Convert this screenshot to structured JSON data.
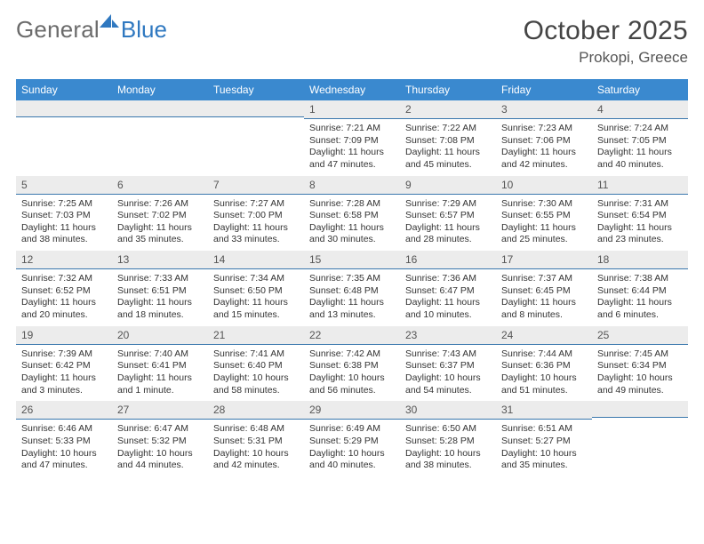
{
  "logo": {
    "text1": "General",
    "text2": "Blue"
  },
  "title": "October 2025",
  "location": "Prokopi, Greece",
  "colors": {
    "header_bg": "#3a89cf",
    "header_text": "#ffffff",
    "daynum_bg": "#ececec",
    "daynum_border": "#3a77ad",
    "logo_gray": "#6b6b6b",
    "logo_blue": "#2f78c0"
  },
  "dayNames": [
    "Sunday",
    "Monday",
    "Tuesday",
    "Wednesday",
    "Thursday",
    "Friday",
    "Saturday"
  ],
  "weeks": [
    [
      {
        "n": "",
        "sr": "",
        "ss": "",
        "dl": ""
      },
      {
        "n": "",
        "sr": "",
        "ss": "",
        "dl": ""
      },
      {
        "n": "",
        "sr": "",
        "ss": "",
        "dl": ""
      },
      {
        "n": "1",
        "sr": "Sunrise: 7:21 AM",
        "ss": "Sunset: 7:09 PM",
        "dl": "Daylight: 11 hours and 47 minutes."
      },
      {
        "n": "2",
        "sr": "Sunrise: 7:22 AM",
        "ss": "Sunset: 7:08 PM",
        "dl": "Daylight: 11 hours and 45 minutes."
      },
      {
        "n": "3",
        "sr": "Sunrise: 7:23 AM",
        "ss": "Sunset: 7:06 PM",
        "dl": "Daylight: 11 hours and 42 minutes."
      },
      {
        "n": "4",
        "sr": "Sunrise: 7:24 AM",
        "ss": "Sunset: 7:05 PM",
        "dl": "Daylight: 11 hours and 40 minutes."
      }
    ],
    [
      {
        "n": "5",
        "sr": "Sunrise: 7:25 AM",
        "ss": "Sunset: 7:03 PM",
        "dl": "Daylight: 11 hours and 38 minutes."
      },
      {
        "n": "6",
        "sr": "Sunrise: 7:26 AM",
        "ss": "Sunset: 7:02 PM",
        "dl": "Daylight: 11 hours and 35 minutes."
      },
      {
        "n": "7",
        "sr": "Sunrise: 7:27 AM",
        "ss": "Sunset: 7:00 PM",
        "dl": "Daylight: 11 hours and 33 minutes."
      },
      {
        "n": "8",
        "sr": "Sunrise: 7:28 AM",
        "ss": "Sunset: 6:58 PM",
        "dl": "Daylight: 11 hours and 30 minutes."
      },
      {
        "n": "9",
        "sr": "Sunrise: 7:29 AM",
        "ss": "Sunset: 6:57 PM",
        "dl": "Daylight: 11 hours and 28 minutes."
      },
      {
        "n": "10",
        "sr": "Sunrise: 7:30 AM",
        "ss": "Sunset: 6:55 PM",
        "dl": "Daylight: 11 hours and 25 minutes."
      },
      {
        "n": "11",
        "sr": "Sunrise: 7:31 AM",
        "ss": "Sunset: 6:54 PM",
        "dl": "Daylight: 11 hours and 23 minutes."
      }
    ],
    [
      {
        "n": "12",
        "sr": "Sunrise: 7:32 AM",
        "ss": "Sunset: 6:52 PM",
        "dl": "Daylight: 11 hours and 20 minutes."
      },
      {
        "n": "13",
        "sr": "Sunrise: 7:33 AM",
        "ss": "Sunset: 6:51 PM",
        "dl": "Daylight: 11 hours and 18 minutes."
      },
      {
        "n": "14",
        "sr": "Sunrise: 7:34 AM",
        "ss": "Sunset: 6:50 PM",
        "dl": "Daylight: 11 hours and 15 minutes."
      },
      {
        "n": "15",
        "sr": "Sunrise: 7:35 AM",
        "ss": "Sunset: 6:48 PM",
        "dl": "Daylight: 11 hours and 13 minutes."
      },
      {
        "n": "16",
        "sr": "Sunrise: 7:36 AM",
        "ss": "Sunset: 6:47 PM",
        "dl": "Daylight: 11 hours and 10 minutes."
      },
      {
        "n": "17",
        "sr": "Sunrise: 7:37 AM",
        "ss": "Sunset: 6:45 PM",
        "dl": "Daylight: 11 hours and 8 minutes."
      },
      {
        "n": "18",
        "sr": "Sunrise: 7:38 AM",
        "ss": "Sunset: 6:44 PM",
        "dl": "Daylight: 11 hours and 6 minutes."
      }
    ],
    [
      {
        "n": "19",
        "sr": "Sunrise: 7:39 AM",
        "ss": "Sunset: 6:42 PM",
        "dl": "Daylight: 11 hours and 3 minutes."
      },
      {
        "n": "20",
        "sr": "Sunrise: 7:40 AM",
        "ss": "Sunset: 6:41 PM",
        "dl": "Daylight: 11 hours and 1 minute."
      },
      {
        "n": "21",
        "sr": "Sunrise: 7:41 AM",
        "ss": "Sunset: 6:40 PM",
        "dl": "Daylight: 10 hours and 58 minutes."
      },
      {
        "n": "22",
        "sr": "Sunrise: 7:42 AM",
        "ss": "Sunset: 6:38 PM",
        "dl": "Daylight: 10 hours and 56 minutes."
      },
      {
        "n": "23",
        "sr": "Sunrise: 7:43 AM",
        "ss": "Sunset: 6:37 PM",
        "dl": "Daylight: 10 hours and 54 minutes."
      },
      {
        "n": "24",
        "sr": "Sunrise: 7:44 AM",
        "ss": "Sunset: 6:36 PM",
        "dl": "Daylight: 10 hours and 51 minutes."
      },
      {
        "n": "25",
        "sr": "Sunrise: 7:45 AM",
        "ss": "Sunset: 6:34 PM",
        "dl": "Daylight: 10 hours and 49 minutes."
      }
    ],
    [
      {
        "n": "26",
        "sr": "Sunrise: 6:46 AM",
        "ss": "Sunset: 5:33 PM",
        "dl": "Daylight: 10 hours and 47 minutes."
      },
      {
        "n": "27",
        "sr": "Sunrise: 6:47 AM",
        "ss": "Sunset: 5:32 PM",
        "dl": "Daylight: 10 hours and 44 minutes."
      },
      {
        "n": "28",
        "sr": "Sunrise: 6:48 AM",
        "ss": "Sunset: 5:31 PM",
        "dl": "Daylight: 10 hours and 42 minutes."
      },
      {
        "n": "29",
        "sr": "Sunrise: 6:49 AM",
        "ss": "Sunset: 5:29 PM",
        "dl": "Daylight: 10 hours and 40 minutes."
      },
      {
        "n": "30",
        "sr": "Sunrise: 6:50 AM",
        "ss": "Sunset: 5:28 PM",
        "dl": "Daylight: 10 hours and 38 minutes."
      },
      {
        "n": "31",
        "sr": "Sunrise: 6:51 AM",
        "ss": "Sunset: 5:27 PM",
        "dl": "Daylight: 10 hours and 35 minutes."
      },
      {
        "n": "",
        "sr": "",
        "ss": "",
        "dl": ""
      }
    ]
  ]
}
